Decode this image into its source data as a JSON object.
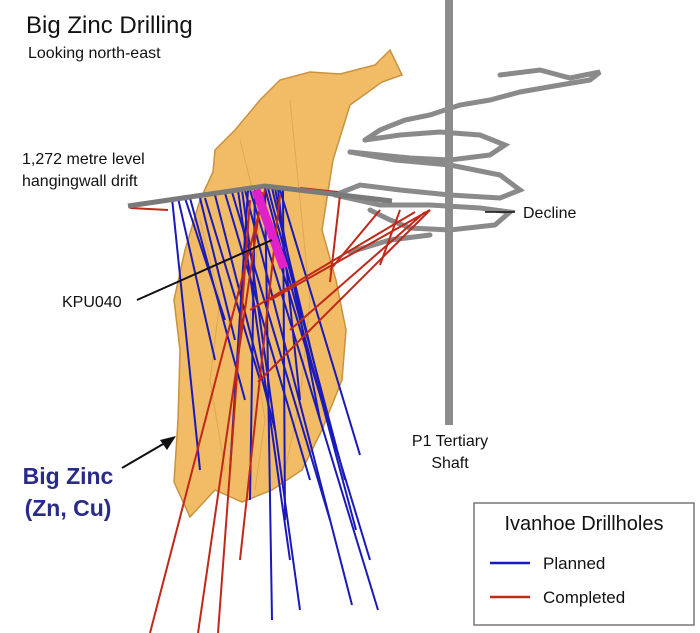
{
  "header": {
    "title": "Big Zinc Drilling",
    "subtitle": "Looking north-east"
  },
  "labels": {
    "drift": [
      "1,272 metre level",
      "hangingwall drift"
    ],
    "decline": "Decline",
    "hole": "KPU040",
    "shaft": [
      "P1 Tertiary",
      "Shaft"
    ],
    "deposit": [
      "Big Zinc",
      "(Zn, Cu)"
    ]
  },
  "legend": {
    "title": "Ivanhoe Drillholes",
    "items": [
      {
        "label": "Planned",
        "color": "#1a1ab8"
      },
      {
        "label": "Completed",
        "color": "#c0281a"
      }
    ]
  }
}
